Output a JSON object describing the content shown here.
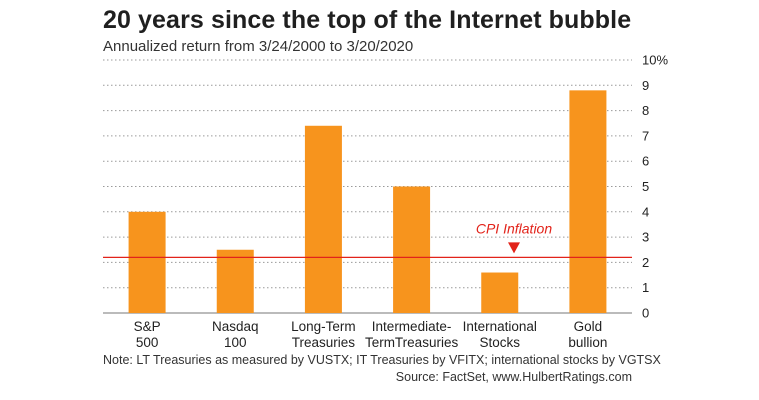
{
  "chart_data": {
    "type": "bar",
    "title": "20 years since the top of the Internet bubble",
    "subtitle": "Annualized return from 3/24/2000 to 3/20/2020",
    "categories": [
      [
        "S&P",
        "500"
      ],
      [
        "Nasdaq",
        "100"
      ],
      [
        "Long-Term",
        "Treasuries"
      ],
      [
        "Intermediate-",
        "TermTreasuries"
      ],
      [
        "International",
        "Stocks"
      ],
      [
        "Gold",
        "bullion"
      ]
    ],
    "values": [
      4.0,
      2.5,
      7.4,
      5.0,
      1.6,
      8.8
    ],
    "ylim": [
      0,
      10
    ],
    "yticks": [
      0,
      1,
      2,
      3,
      4,
      5,
      6,
      7,
      8,
      9,
      10
    ],
    "ytick_labels": [
      "0",
      "1",
      "2",
      "3",
      "4",
      "5",
      "6",
      "7",
      "8",
      "9",
      "10%"
    ],
    "xlabel": "",
    "ylabel": "",
    "grid": true,
    "y_axis_side": "right",
    "reference_line": {
      "label": "CPI Inflation",
      "value": 2.2
    },
    "note": "Note: LT Treasuries as measured by VUSTX; IT Treasuries by VFITX; international stocks by VGTSX",
    "source": "Source: FactSet, www.HulbertRatings.com",
    "colors": {
      "bar": "#F7941D",
      "reference_line": "#E2231A",
      "grid": "#9a9a9a",
      "text": "#222222"
    }
  }
}
